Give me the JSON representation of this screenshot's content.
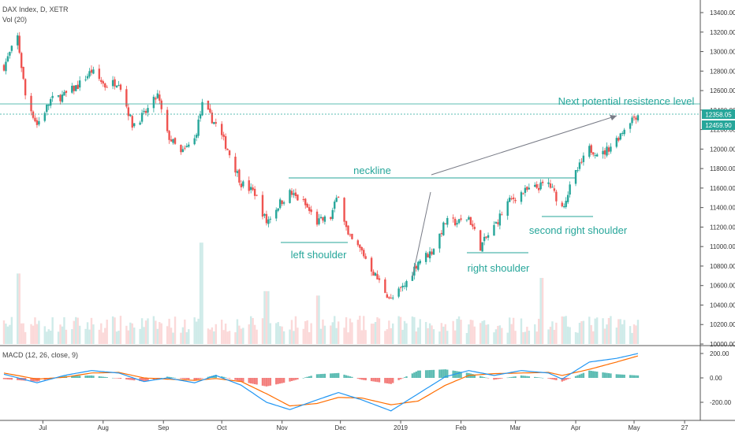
{
  "header": {
    "symbol": "DAX Index, D, XETR",
    "volume_label": "Vol (20)"
  },
  "macd_panel": {
    "label": "MACD (12, 26, close, 9)",
    "axis_ticks": [
      "200.00",
      "0.00",
      "-200.00"
    ],
    "macd_color": "#2196f3",
    "signal_color": "#ff6d00",
    "hist_up_color": "#26a69a",
    "hist_down_color": "#ef5350"
  },
  "x_axis": {
    "labels": [
      "Jul",
      "Aug",
      "Sep",
      "Oct",
      "Nov",
      "Dec",
      "2019",
      "Feb",
      "Mar",
      "Apr",
      "May",
      "27"
    ]
  },
  "price_axis": {
    "ticks": [
      "13400.00",
      "13200.00",
      "13000.00",
      "12800.00",
      "12600.00",
      "12400.00",
      "12200.00",
      "12000.00",
      "11800.00",
      "11600.00",
      "11400.00",
      "11200.00",
      "11000.00",
      "10800.00",
      "10600.00",
      "10400.00",
      "10200.00",
      "10000.00"
    ],
    "price_badge": "12358.05",
    "level_badge": "12459.90",
    "badge_color": "#26a69a"
  },
  "annotations": {
    "neckline": "neckline",
    "left_shoulder": "left shoulder",
    "right_shoulder": "right shoulder",
    "second_right_shoulder": "second right shoulder",
    "resistance": "Next potential resistence level"
  },
  "colors": {
    "up": "#26a69a",
    "down": "#ef5350",
    "line": "#26a69a"
  },
  "chart_data": {
    "type": "candlestick",
    "title": "DAX Index, D, XETR",
    "x_range": [
      "2018-06-11",
      "2019-05-31"
    ],
    "y_range": [
      10000,
      13500
    ],
    "resistance_level": 12459.9,
    "last_price": 12358.05,
    "price_path": [
      [
        "2018-06-11",
        12850
      ],
      [
        "2018-06-18",
        13150
      ],
      [
        "2018-06-22",
        12550
      ],
      [
        "2018-06-28",
        12250
      ],
      [
        "2018-07-05",
        12500
      ],
      [
        "2018-07-12",
        12550
      ],
      [
        "2018-07-19",
        12650
      ],
      [
        "2018-07-26",
        12800
      ],
      [
        "2018-08-02",
        12650
      ],
      [
        "2018-08-09",
        12700
      ],
      [
        "2018-08-16",
        12250
      ],
      [
        "2018-08-22",
        12350
      ],
      [
        "2018-08-29",
        12550
      ],
      [
        "2018-09-03",
        12150
      ],
      [
        "2018-09-10",
        11950
      ],
      [
        "2018-09-17",
        12100
      ],
      [
        "2018-09-21",
        12450
      ],
      [
        "2018-09-28",
        12250
      ],
      [
        "2018-10-04",
        12000
      ],
      [
        "2018-10-11",
        11650
      ],
      [
        "2018-10-18",
        11550
      ],
      [
        "2018-10-24",
        11250
      ],
      [
        "2018-10-31",
        11450
      ],
      [
        "2018-11-05",
        11550
      ],
      [
        "2018-11-12",
        11450
      ],
      [
        "2018-11-19",
        11250
      ],
      [
        "2018-11-26",
        11300
      ],
      [
        "2018-11-30",
        11550
      ],
      [
        "2018-12-05",
        11100
      ],
      [
        "2018-12-12",
        10950
      ],
      [
        "2018-12-19",
        10700
      ],
      [
        "2018-12-27",
        10450
      ],
      [
        "2019-01-03",
        10600
      ],
      [
        "2019-01-10",
        10850
      ],
      [
        "2019-01-17",
        10950
      ],
      [
        "2019-01-24",
        11250
      ],
      [
        "2019-01-31",
        11250
      ],
      [
        "2019-02-05",
        11300
      ],
      [
        "2019-02-11",
        11000
      ],
      [
        "2019-02-18",
        11200
      ],
      [
        "2019-02-25",
        11450
      ],
      [
        "2019-03-04",
        11550
      ],
      [
        "2019-03-11",
        11600
      ],
      [
        "2019-03-18",
        11650
      ],
      [
        "2019-03-25",
        11400
      ],
      [
        "2019-04-01",
        11750
      ],
      [
        "2019-04-08",
        12000
      ],
      [
        "2019-04-15",
        11950
      ],
      [
        "2019-04-22",
        12100
      ],
      [
        "2019-04-29",
        12300
      ],
      [
        "2019-05-03",
        12358
      ]
    ],
    "macd_path": [
      [
        "2018-06-11",
        30
      ],
      [
        "2018-06-28",
        -40
      ],
      [
        "2018-07-12",
        20
      ],
      [
        "2018-07-26",
        60
      ],
      [
        "2018-08-09",
        40
      ],
      [
        "2018-08-22",
        -30
      ],
      [
        "2018-09-03",
        0
      ],
      [
        "2018-09-17",
        -40
      ],
      [
        "2018-09-28",
        20
      ],
      [
        "2018-10-11",
        -60
      ],
      [
        "2018-10-24",
        -200
      ],
      [
        "2018-11-05",
        -260
      ],
      [
        "2018-11-19",
        -180
      ],
      [
        "2018-11-30",
        -120
      ],
      [
        "2018-12-12",
        -180
      ],
      [
        "2018-12-27",
        -270
      ],
      [
        "2019-01-10",
        -130
      ],
      [
        "2019-01-24",
        10
      ],
      [
        "2019-02-05",
        60
      ],
      [
        "2019-02-18",
        20
      ],
      [
        "2019-03-04",
        60
      ],
      [
        "2019-03-18",
        40
      ],
      [
        "2019-03-25",
        -10
      ],
      [
        "2019-04-08",
        130
      ],
      [
        "2019-04-22",
        160
      ],
      [
        "2019-05-03",
        200
      ]
    ],
    "signal_path": [
      [
        "2018-06-11",
        40
      ],
      [
        "2018-06-28",
        -10
      ],
      [
        "2018-07-12",
        5
      ],
      [
        "2018-07-26",
        40
      ],
      [
        "2018-08-09",
        45
      ],
      [
        "2018-08-22",
        0
      ],
      [
        "2018-09-03",
        -10
      ],
      [
        "2018-09-17",
        -20
      ],
      [
        "2018-09-28",
        -5
      ],
      [
        "2018-10-11",
        -30
      ],
      [
        "2018-10-24",
        -130
      ],
      [
        "2018-11-05",
        -230
      ],
      [
        "2018-11-19",
        -210
      ],
      [
        "2018-11-30",
        -160
      ],
      [
        "2018-12-12",
        -165
      ],
      [
        "2018-12-27",
        -220
      ],
      [
        "2019-01-10",
        -190
      ],
      [
        "2019-01-24",
        -60
      ],
      [
        "2019-02-05",
        20
      ],
      [
        "2019-02-18",
        35
      ],
      [
        "2019-03-04",
        40
      ],
      [
        "2019-03-18",
        45
      ],
      [
        "2019-03-25",
        20
      ],
      [
        "2019-04-08",
        70
      ],
      [
        "2019-04-22",
        130
      ],
      [
        "2019-05-03",
        180
      ]
    ],
    "volume_spikes": [
      [
        "2018-06-18",
        3.2
      ],
      [
        "2018-09-21",
        4.6
      ],
      [
        "2018-10-24",
        2.4
      ],
      [
        "2018-11-19",
        2.2
      ],
      [
        "2019-03-15",
        3.0
      ]
    ]
  }
}
